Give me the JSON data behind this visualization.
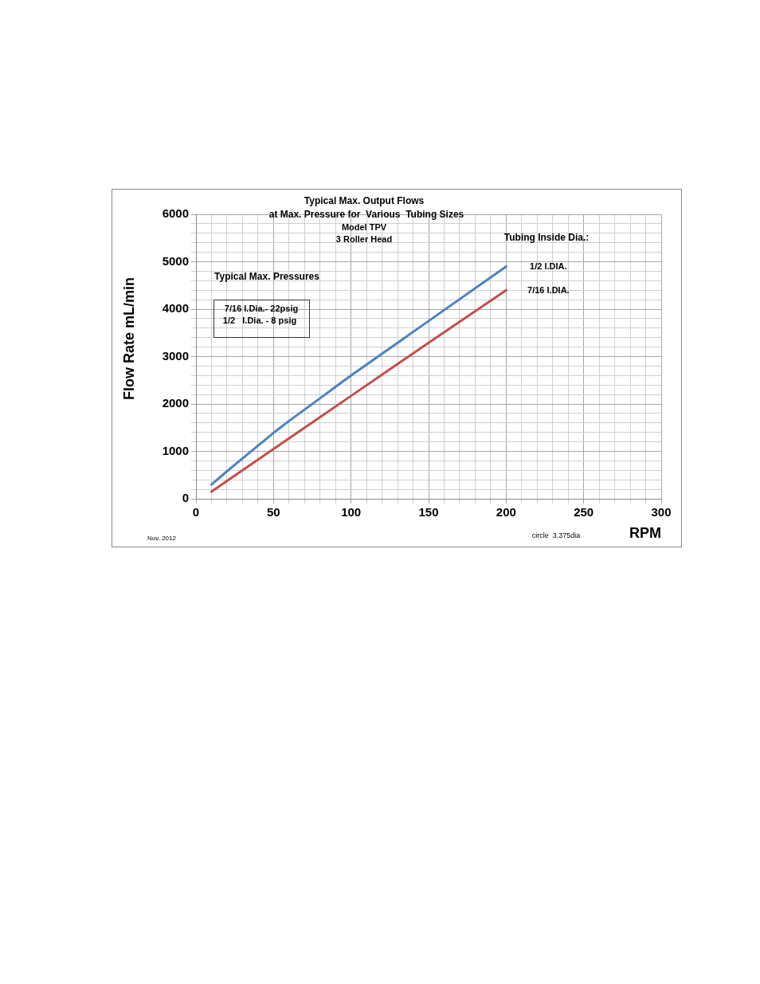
{
  "chart_data": {
    "type": "line",
    "title": "Typical Max. Output Flows",
    "subtitle": "at Max. Pressure for  Various  Tubing Sizes",
    "xlabel": "RPM",
    "ylabel": "Flow Rate mL/min",
    "annotations": [
      "Model TPV",
      "3 Roller Head",
      "Tubing Inside Dia.:",
      "Typical Max. Pressures",
      "7/16 I.Dia.- 22psig",
      "1/2   I.Dia. - 8 psig",
      "Nov. 2012",
      "circle  3.375dia"
    ],
    "series": [
      {
        "name": "1/2 I.DIA.",
        "color": "#4f81bd",
        "x": [
          10,
          20,
          30,
          40,
          50,
          60,
          70,
          80,
          90,
          100,
          150,
          200
        ],
        "values": [
          300,
          580,
          850,
          1120,
          1390,
          1640,
          1880,
          2120,
          2360,
          2600,
          3750,
          4900
        ]
      },
      {
        "name": "7/16 I.DIA.",
        "color": "#c0504d",
        "x": [
          10,
          50,
          100,
          150,
          200
        ],
        "values": [
          150,
          1050,
          2170,
          3290,
          4400
        ]
      }
    ],
    "xlim": [
      0,
      300
    ],
    "xticks": [
      0,
      {
        "value": 10,
        "label": null
      },
      {
        "value": 20,
        "label": null
      },
      {
        "value": 30,
        "label": null
      },
      {
        "value": 40,
        "label": null
      },
      50,
      {
        "value": 60,
        "label": null
      },
      {
        "value": 70,
        "label": null
      },
      {
        "value": 80,
        "label": null
      },
      {
        "value": 90,
        "label": null
      },
      100,
      {
        "value": 110,
        "label": null
      },
      {
        "value": 120,
        "label": null
      },
      {
        "value": 130,
        "label": null
      },
      {
        "value": 140,
        "label": null
      },
      150,
      {
        "value": 160,
        "label": null
      },
      {
        "value": 170,
        "label": null
      },
      {
        "value": 180,
        "label": null
      },
      {
        "value": 190,
        "label": null
      },
      200,
      {
        "value": 210,
        "label": null
      },
      {
        "value": 220,
        "label": null
      },
      {
        "value": 230,
        "label": null
      },
      {
        "value": 240,
        "label": null
      },
      250,
      {
        "value": 260,
        "label": null
      },
      {
        "value": 270,
        "label": null
      },
      {
        "value": 280,
        "label": null
      },
      {
        "value": 290,
        "label": null
      },
      300
    ],
    "ylim": [
      0,
      6000
    ],
    "yticks": [
      0,
      {
        "value": 200,
        "label": null
      },
      {
        "value": 400,
        "label": null
      },
      {
        "value": 600,
        "label": null
      },
      {
        "value": 800,
        "label": null
      },
      1000,
      {
        "value": 1200,
        "label": null
      },
      {
        "value": 1400,
        "label": null
      },
      {
        "value": 1600,
        "label": null
      },
      {
        "value": 1800,
        "label": null
      },
      2000,
      {
        "value": 2200,
        "label": null
      },
      {
        "value": 2400,
        "label": null
      },
      {
        "value": 2600,
        "label": null
      },
      {
        "value": 2800,
        "label": null
      },
      3000,
      {
        "value": 3200,
        "label": null
      },
      {
        "value": 3400,
        "label": null
      },
      {
        "value": 3600,
        "label": null
      },
      {
        "value": 3800,
        "label": null
      },
      4000,
      {
        "value": 4200,
        "label": null
      },
      {
        "value": 4400,
        "label": null
      },
      {
        "value": 4600,
        "label": null
      },
      {
        "value": 4800,
        "label": null
      },
      5000,
      {
        "value": 5200,
        "label": null
      },
      {
        "value": 5400,
        "label": null
      },
      {
        "value": 5600,
        "label": null
      },
      {
        "value": 5800,
        "label": null
      },
      6000
    ],
    "grid": true,
    "legend": false,
    "marker": "none",
    "line_style": "solid"
  }
}
